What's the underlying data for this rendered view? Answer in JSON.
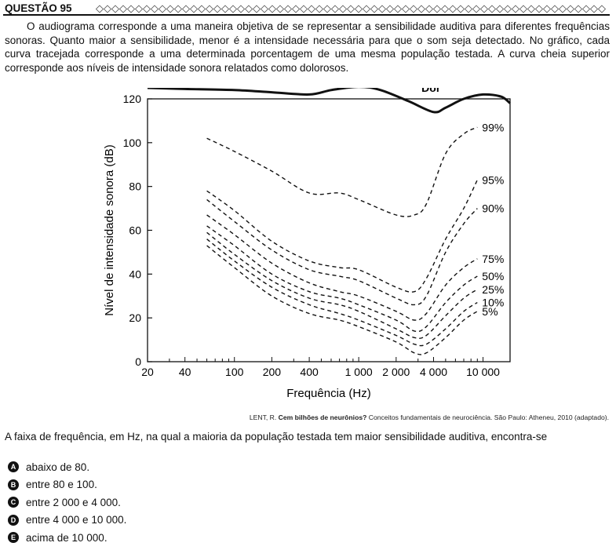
{
  "question": {
    "title": "QUESTÃO 95",
    "intro": "O audiograma corresponde a uma maneira objetiva de se representar a sensibilidade auditiva para diferentes frequências sonoras. Quanto maior a sensibilidade, menor é a intensidade necessária para que o som seja detectado. No gráfico, cada curva tracejada corresponde a uma determinada porcentagem de uma mesma população testada. A curva cheia superior corresponde aos níveis de intensidade sonora relatados como dolorosos.",
    "source_author": "LENT, R.",
    "source_title": "Cem bilhões de neurônios?",
    "source_rest": "Conceitos fundamentais de neurociência. São Paulo: Atheneu, 2010 (adaptado).",
    "prompt": "A faixa de frequência, em Hz, na qual a maioria da população testada tem maior sensibilidade auditiva, encontra-se",
    "options": [
      {
        "letter": "A",
        "text": "abaixo de 80."
      },
      {
        "letter": "B",
        "text": "entre 80 e 100."
      },
      {
        "letter": "C",
        "text": "entre 2 000 e 4 000."
      },
      {
        "letter": "D",
        "text": "entre 4 000 e 10 000."
      },
      {
        "letter": "E",
        "text": "acima de 10 000."
      }
    ]
  },
  "chart_data": {
    "type": "line",
    "title": "",
    "xlabel": "Frequência (Hz)",
    "ylabel": "Nível de intensidade sonora (dB)",
    "xscale": "log",
    "xlim": [
      20,
      16500
    ],
    "ylim": [
      0,
      120
    ],
    "xticks": [
      20,
      40,
      100,
      200,
      400,
      1000,
      2000,
      4000,
      10000
    ],
    "xtick_labels": [
      "20",
      "40",
      "100",
      "200",
      "400",
      "1 000",
      "2 000",
      "4 000",
      "10 000"
    ],
    "yticks": [
      0,
      20,
      40,
      60,
      80,
      100,
      120
    ],
    "ytick_labels": [
      "0",
      "20",
      "40",
      "60",
      "80",
      "100",
      "120"
    ],
    "series": [
      {
        "name": "Dor",
        "style": "solid",
        "x": [
          20,
          40,
          100,
          200,
          400,
          600,
          1000,
          1500,
          2500,
          4000,
          5000,
          7000,
          10000,
          14000,
          16500
        ],
        "y": [
          125,
          124.5,
          124,
          123,
          122,
          124,
          125.5,
          124,
          119,
          114,
          116,
          120,
          122,
          121,
          118
        ]
      },
      {
        "name": "99%",
        "style": "dashed",
        "x": [
          60,
          100,
          200,
          400,
          700,
          1000,
          2000,
          2800,
          3500,
          5000,
          7000,
          9000
        ],
        "y": [
          102,
          96,
          87,
          77,
          77,
          74,
          67,
          67,
          72,
          95,
          104,
          107
        ]
      },
      {
        "name": "95%",
        "style": "dashed",
        "x": [
          60,
          100,
          200,
          400,
          700,
          1000,
          2000,
          2800,
          3500,
          5000,
          7000,
          9000
        ],
        "y": [
          78,
          69,
          55,
          46,
          43,
          42,
          34,
          32,
          38,
          56,
          70,
          83
        ]
      },
      {
        "name": "90%",
        "style": "dashed",
        "x": [
          60,
          100,
          200,
          400,
          700,
          1000,
          2000,
          2800,
          3500,
          5000,
          7000,
          9000
        ],
        "y": [
          74,
          64,
          51,
          42,
          39,
          37,
          29,
          26,
          30,
          50,
          63,
          70
        ]
      },
      {
        "name": "75%",
        "style": "dashed",
        "x": [
          60,
          100,
          200,
          400,
          700,
          1000,
          2000,
          2800,
          3500,
          5000,
          7000,
          9000
        ],
        "y": [
          67,
          58,
          45,
          36,
          32,
          30,
          23,
          19,
          22,
          35,
          43,
          47
        ]
      },
      {
        "name": "50%",
        "style": "dashed",
        "x": [
          60,
          100,
          200,
          400,
          700,
          1000,
          2000,
          2800,
          3500,
          5000,
          7000,
          9000
        ],
        "y": [
          62,
          53,
          40,
          32,
          29,
          26,
          19,
          14,
          16,
          27,
          35,
          39
        ]
      },
      {
        "name": "25%",
        "style": "dashed",
        "x": [
          60,
          100,
          200,
          400,
          700,
          1000,
          2000,
          2800,
          3500,
          5000,
          7000,
          9000
        ],
        "y": [
          59,
          49,
          37,
          29,
          26,
          23,
          15,
          11,
          12,
          21,
          29,
          33
        ]
      },
      {
        "name": "10%",
        "style": "dashed",
        "x": [
          60,
          100,
          200,
          400,
          700,
          1000,
          2000,
          2800,
          3500,
          5000,
          7000,
          9000
        ],
        "y": [
          56,
          46,
          34,
          26,
          22,
          19,
          12,
          8,
          8,
          15,
          23,
          27
        ]
      },
      {
        "name": "5%",
        "style": "dashed",
        "x": [
          60,
          100,
          200,
          400,
          700,
          1000,
          2000,
          2800,
          3500,
          5000,
          7000,
          9000
        ],
        "y": [
          53,
          43,
          30,
          22,
          19,
          16,
          9,
          4,
          4,
          11,
          19,
          23
        ]
      }
    ]
  }
}
